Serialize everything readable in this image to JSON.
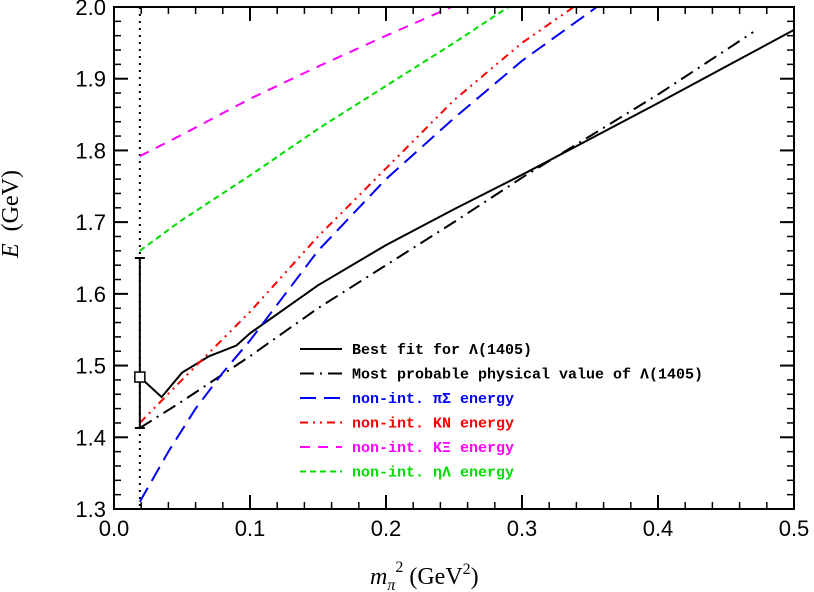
{
  "chart_data": {
    "type": "line",
    "xlabel": "m_π² (GeV²)",
    "xlabel_parts": {
      "main": "m",
      "sub": "π",
      "sup": "2",
      "unit": " (GeV",
      "unit_sup": "2",
      "unit_close": ")"
    },
    "ylabel": "E (GeV)",
    "ylabel_parts": {
      "var": "E",
      "unit": "(GeV)"
    },
    "xlim": [
      0.0,
      0.5
    ],
    "ylim": [
      1.3,
      2.0
    ],
    "xticks": [
      "0.0",
      "0.1",
      "0.2",
      "0.3",
      "0.4",
      "0.5"
    ],
    "yticks": [
      "1.3",
      "1.4",
      "1.5",
      "1.6",
      "1.7",
      "1.8",
      "1.9",
      "2.0"
    ],
    "grid": false,
    "legend_position": "bottom-right",
    "physical_point_m2": 0.019,
    "data_point": {
      "x": 0.019,
      "y": 1.484,
      "yerr_low": 1.413,
      "yerr_high": 1.65
    },
    "series": [
      {
        "name": "Best fit for Λ(1405)",
        "color": "#000000",
        "style": "solid",
        "x": [
          0.019,
          0.035,
          0.05,
          0.07,
          0.09,
          0.1,
          0.15,
          0.2,
          0.25,
          0.3,
          0.35,
          0.4,
          0.45,
          0.5
        ],
        "y": [
          1.484,
          1.456,
          1.49,
          1.513,
          1.528,
          1.545,
          1.612,
          1.668,
          1.718,
          1.766,
          1.816,
          1.866,
          1.917,
          1.968
        ]
      },
      {
        "name": "Most probable physical value of Λ(1405)",
        "color": "#000000",
        "style": "dashdot",
        "x": [
          0.019,
          0.05,
          0.1,
          0.15,
          0.2,
          0.25,
          0.3,
          0.35,
          0.4,
          0.47
        ],
        "y": [
          1.413,
          1.45,
          1.513,
          1.58,
          1.64,
          1.7,
          1.762,
          1.82,
          1.878,
          1.965
        ]
      },
      {
        "name": "non-int. πΣ energy",
        "color": "#0000ff",
        "style": "longdash",
        "x": [
          0.019,
          0.04,
          0.06,
          0.08,
          0.1,
          0.15,
          0.2,
          0.25,
          0.3,
          0.355
        ],
        "y": [
          1.31,
          1.38,
          1.44,
          1.49,
          1.535,
          1.66,
          1.76,
          1.845,
          1.925,
          2.0
        ]
      },
      {
        "name": "non-int. KN energy",
        "color": "#ff0000",
        "style": "dashdotdot",
        "x": [
          0.019,
          0.05,
          0.1,
          0.15,
          0.2,
          0.25,
          0.3,
          0.338
        ],
        "y": [
          1.42,
          1.48,
          1.575,
          1.68,
          1.775,
          1.87,
          1.95,
          2.0
        ]
      },
      {
        "name": "non-int. KΞ energy",
        "color": "#ff00ff",
        "style": "dash",
        "x": [
          0.019,
          0.05,
          0.1,
          0.15,
          0.2,
          0.248
        ],
        "y": [
          1.792,
          1.822,
          1.872,
          1.917,
          1.96,
          2.0
        ]
      },
      {
        "name": "non-int. ηΛ energy",
        "color": "#00dd00",
        "style": "shortdash",
        "x": [
          0.019,
          0.05,
          0.1,
          0.15,
          0.2,
          0.25,
          0.29
        ],
        "y": [
          1.66,
          1.703,
          1.765,
          1.83,
          1.89,
          1.95,
          2.0
        ]
      }
    ]
  }
}
